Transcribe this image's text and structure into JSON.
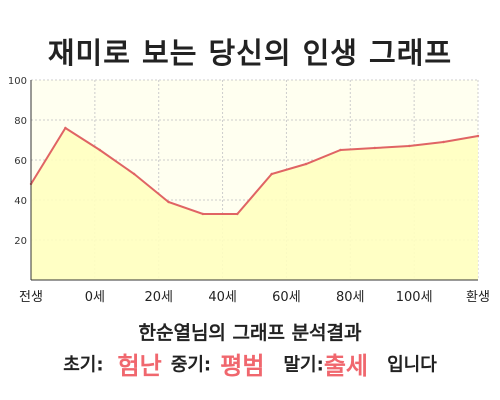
{
  "title": "재미로 보는 당신의 인생 그래프",
  "result": {
    "heading": "한순열님의 그래프 분석결과",
    "early_label": "초기:",
    "early_value": "험난",
    "middle_label": "중기:",
    "middle_value": "평범",
    "late_label": "말기:",
    "late_value": "출세",
    "ending": "입니다"
  },
  "colors": {
    "line": "#e06464",
    "fill": "#ffffc0",
    "plot_bg": "#fffff0",
    "accent_text": "#f0676e"
  },
  "chart_data": {
    "type": "area",
    "title": "",
    "xlabel": "",
    "ylabel": "",
    "ylim": [
      0,
      100
    ],
    "yticks": [
      20,
      40,
      60,
      80,
      100
    ],
    "xticks": [
      "전생",
      "0세",
      "20세",
      "40세",
      "60세",
      "80세",
      "100세",
      "환생"
    ],
    "grid": true,
    "x": [
      "전생",
      "0세",
      "10세",
      "20세",
      "30세",
      "40세",
      "50세",
      "60세",
      "70세",
      "80세",
      "90세",
      "100세",
      "110세",
      "환생"
    ],
    "values": [
      48,
      76,
      65,
      53,
      39,
      33,
      33,
      53,
      58,
      65,
      66,
      67,
      69,
      72
    ]
  }
}
